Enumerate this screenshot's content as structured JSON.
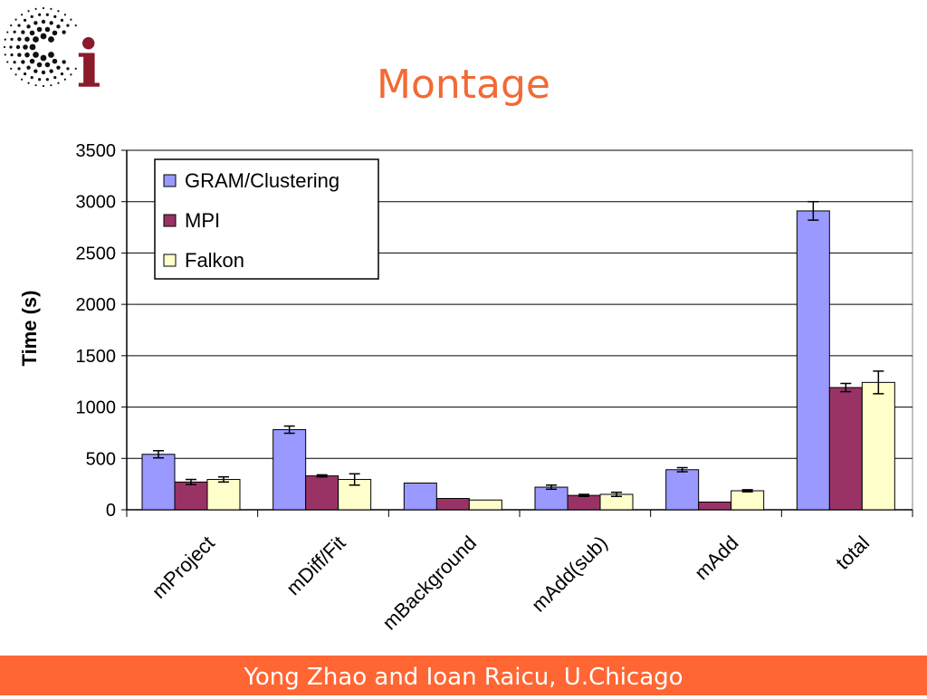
{
  "slide": {
    "title": "Montage",
    "footer": "Yong Zhao and Ioan Raicu, U.Chicago",
    "logo_letter": "i"
  },
  "colors": {
    "title": "#f26a35",
    "footer_bg": "#ff6633",
    "logo_red": "#8b1a2b",
    "series": [
      "#9999ff",
      "#993366",
      "#ffffcc"
    ]
  },
  "chart_data": {
    "type": "bar",
    "ylabel": "Time (s)",
    "xlabel": "",
    "ylim": [
      0,
      3500
    ],
    "yticks": [
      0,
      500,
      1000,
      1500,
      2000,
      2500,
      3000,
      3500
    ],
    "categories": [
      "mProject",
      "mDiff/Fit",
      "mBackground",
      "mAdd(sub)",
      "mAdd",
      "total"
    ],
    "grid": "horizontal",
    "legend_position": "top-left",
    "series": [
      {
        "name": "GRAM/Clustering",
        "values": [
          540,
          780,
          260,
          220,
          390,
          2910
        ],
        "errors": [
          35,
          35,
          0,
          20,
          20,
          90
        ]
      },
      {
        "name": "MPI",
        "values": [
          270,
          330,
          110,
          140,
          75,
          1190
        ],
        "errors": [
          25,
          10,
          0,
          10,
          0,
          40
        ]
      },
      {
        "name": "Falkon",
        "values": [
          295,
          295,
          95,
          150,
          185,
          1240
        ],
        "errors": [
          25,
          55,
          0,
          20,
          10,
          110
        ]
      }
    ]
  }
}
